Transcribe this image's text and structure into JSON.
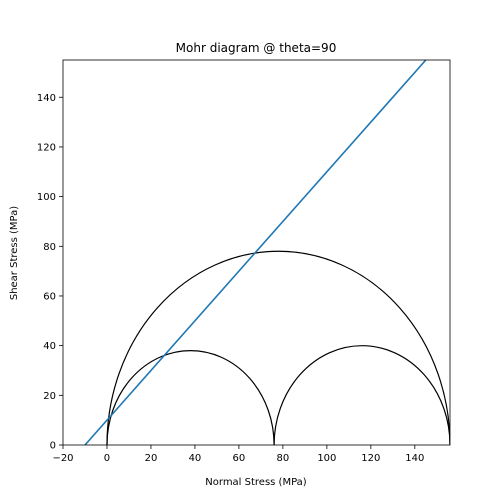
{
  "chart_data": {
    "type": "line",
    "title": "Mohr diagram @ theta=90",
    "xlabel": "Normal Stress (MPa)",
    "ylabel": "Shear Stress (MPa)",
    "xlim": [
      -20,
      156
    ],
    "ylim": [
      0,
      155
    ],
    "xticks": [
      -20,
      0,
      20,
      40,
      60,
      80,
      100,
      120,
      140
    ],
    "yticks": [
      0,
      20,
      40,
      60,
      80,
      100,
      120,
      140
    ],
    "grid": false,
    "circles": [
      {
        "center": 78,
        "radius": 78,
        "color": "#000000"
      },
      {
        "center": 38,
        "radius": 38,
        "color": "#000000"
      },
      {
        "center": 116,
        "radius": 40,
        "color": "#000000"
      }
    ],
    "series": [
      {
        "x": [
          -10,
          145
        ],
        "y": [
          0,
          155
        ],
        "color": "#1f77b4"
      }
    ]
  }
}
